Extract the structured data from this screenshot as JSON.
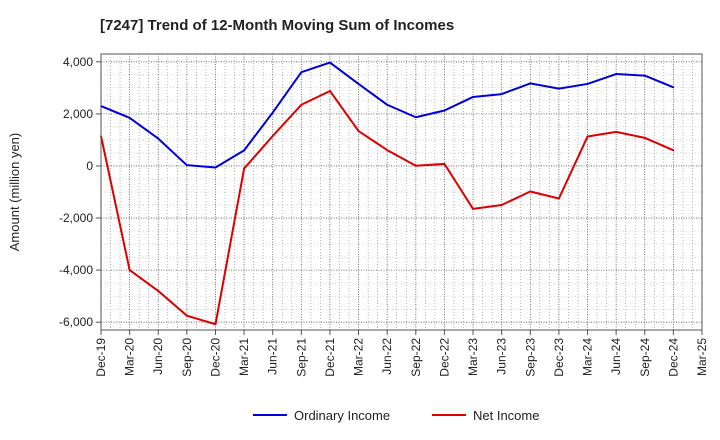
{
  "chart_data": {
    "type": "line",
    "title": "[7247]  Trend of 12-Month Moving Sum of Incomes",
    "ylabel": "Amount (million yen)",
    "xlabel": "",
    "ylim": [
      -6300,
      4300
    ],
    "yticks": [
      4000,
      2000,
      0,
      -2000,
      -4000,
      -6000
    ],
    "ytick_labels": [
      "4,000",
      "2,000",
      "0",
      "-2,000",
      "-4,000",
      "-6,000"
    ],
    "categories": [
      "Dec-19",
      "Mar-20",
      "Jun-20",
      "Sep-20",
      "Dec-20",
      "Mar-21",
      "Jun-21",
      "Sep-21",
      "Dec-21",
      "Mar-22",
      "Jun-22",
      "Sep-22",
      "Dec-22",
      "Mar-23",
      "Jun-23",
      "Sep-23",
      "Dec-23",
      "Mar-24",
      "Jun-24",
      "Sep-24",
      "Dec-24",
      "Mar-25"
    ],
    "series": [
      {
        "name": "Ordinary Income",
        "color": "#0000dd",
        "values": [
          2300,
          1850,
          1050,
          30,
          -60,
          600,
          2050,
          3600,
          3970,
          3150,
          2350,
          1870,
          2130,
          2650,
          2760,
          3170,
          2970,
          3150,
          3530,
          3470,
          3020,
          null
        ]
      },
      {
        "name": "Net Income",
        "color": "#dd0000",
        "values": [
          1150,
          -4000,
          -4800,
          -5750,
          -6080,
          -100,
          1150,
          2350,
          2880,
          1340,
          610,
          10,
          80,
          -1650,
          -1500,
          -980,
          -1250,
          1130,
          1310,
          1080,
          600,
          null
        ]
      }
    ],
    "grid": true,
    "legend": "bottom-center"
  }
}
